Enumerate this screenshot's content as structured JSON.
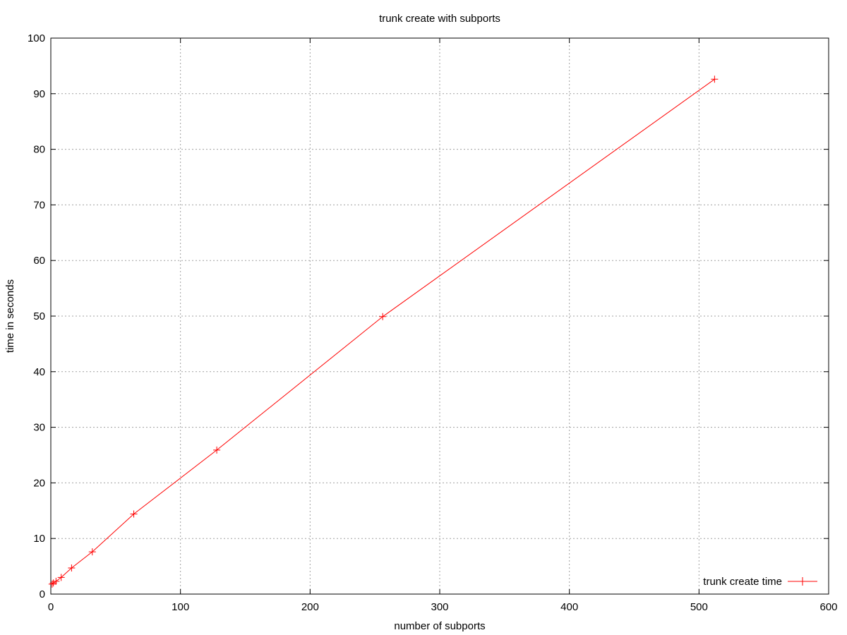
{
  "chart_data": {
    "type": "line",
    "title": "trunk create with subports",
    "xlabel": "number of subports",
    "ylabel": "time in seconds",
    "xlim": [
      0,
      600
    ],
    "ylim": [
      0,
      100
    ],
    "xticks": [
      0,
      100,
      200,
      300,
      400,
      500,
      600
    ],
    "yticks": [
      0,
      10,
      20,
      30,
      40,
      50,
      60,
      70,
      80,
      90,
      100
    ],
    "grid": true,
    "legend_position": "bottom-right",
    "series": [
      {
        "name": "trunk create time",
        "color": "#ff0000",
        "marker": "plus",
        "x": [
          1,
          2,
          4,
          8,
          16,
          32,
          64,
          128,
          256,
          512
        ],
        "y": [
          1.8,
          2.0,
          2.3,
          3.0,
          4.7,
          7.6,
          14.4,
          25.9,
          49.9,
          92.6
        ]
      }
    ]
  }
}
